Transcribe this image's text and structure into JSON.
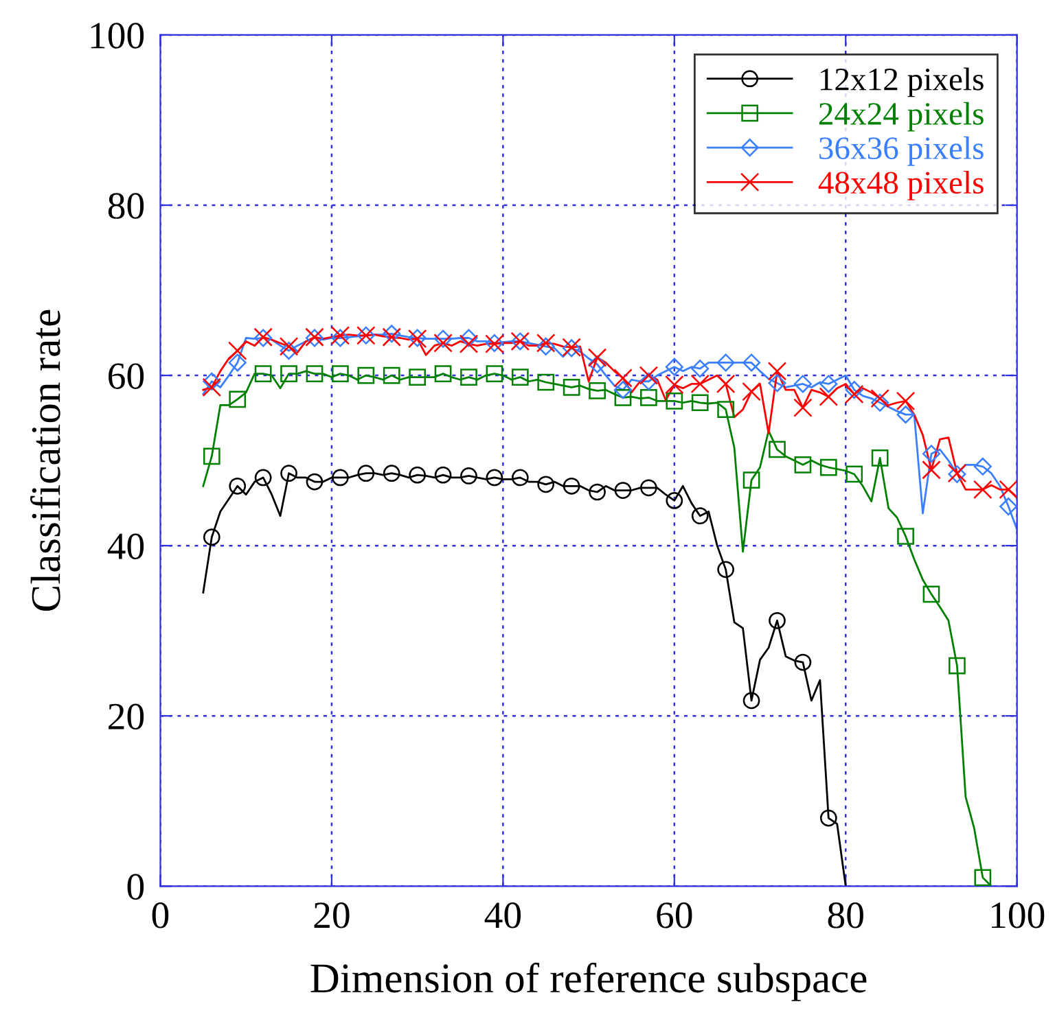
{
  "chart_data": {
    "type": "line",
    "xlabel": "Dimension of reference subspace",
    "ylabel": "Classification rate",
    "xlim": [
      0,
      100
    ],
    "ylim": [
      0,
      100
    ],
    "xticks": [
      0,
      20,
      40,
      60,
      80,
      100
    ],
    "yticks": [
      0,
      20,
      40,
      60,
      80,
      100
    ],
    "grid": true,
    "legend": "top right",
    "line_style": "solid",
    "series": [
      {
        "color": "#000000",
        "x": [
          5,
          6,
          7,
          8,
          9,
          10,
          11,
          12,
          13,
          14,
          15,
          16,
          17,
          18,
          19,
          20,
          21,
          22,
          23,
          24,
          25,
          26,
          27,
          28,
          29,
          30,
          31,
          32,
          33,
          34,
          35,
          36,
          37,
          38,
          39,
          40,
          41,
          42,
          43,
          44,
          45,
          46,
          47,
          48,
          49,
          50,
          51,
          52,
          53,
          54,
          55,
          56,
          57,
          58,
          59,
          60,
          61,
          62,
          63,
          64,
          65,
          66,
          67,
          68,
          69,
          70,
          71,
          72,
          73,
          74,
          75,
          76,
          77,
          78,
          79,
          80
        ],
        "values": [
          34.5,
          41,
          44,
          45.5,
          47,
          46,
          47.5,
          48,
          46,
          43.5,
          48.5,
          48,
          48,
          47.5,
          47.5,
          48,
          48,
          48,
          48.3,
          48.5,
          48.5,
          48.3,
          48.5,
          48.3,
          48,
          48.3,
          48.2,
          48,
          48.3,
          48,
          48,
          48.2,
          48,
          47.8,
          48,
          47.8,
          47.8,
          48,
          47.5,
          47.5,
          47.2,
          47.5,
          47,
          47,
          47,
          46.5,
          46.3,
          47,
          46.5,
          46.5,
          46.5,
          46.8,
          46.8,
          46.8,
          46,
          45.3,
          47,
          45,
          43.5,
          44,
          40,
          37.2,
          31,
          30.3,
          21.8,
          26.6,
          28,
          31.2,
          27,
          26.5,
          26.3,
          21.8,
          24.2,
          8,
          7.3,
          0
        ]
      },
      {
        "type": "scatter",
        "name": "12x12 pixels",
        "color": "#000000",
        "marker": "circle",
        "x": [
          6,
          9,
          12,
          15,
          18,
          21,
          24,
          27,
          30,
          33,
          36,
          39,
          42,
          45,
          48,
          51,
          54,
          57,
          60,
          63,
          66,
          69,
          72,
          75,
          78
        ],
        "values": [
          41,
          47,
          48,
          48.5,
          47.5,
          48,
          48.5,
          48.5,
          48.3,
          48.3,
          48.2,
          48,
          48,
          47.2,
          47,
          46.3,
          46.5,
          46.8,
          45.3,
          43.5,
          37.2,
          21.8,
          31.2,
          26.3,
          8
        ]
      },
      {
        "color": "#008000",
        "x": [
          5,
          6,
          7,
          8,
          9,
          10,
          11,
          12,
          13,
          14,
          15,
          16,
          17,
          18,
          19,
          20,
          21,
          22,
          23,
          24,
          25,
          26,
          27,
          28,
          29,
          30,
          31,
          32,
          33,
          34,
          35,
          36,
          37,
          38,
          39,
          40,
          41,
          42,
          43,
          44,
          45,
          46,
          47,
          48,
          49,
          50,
          51,
          52,
          53,
          54,
          55,
          56,
          57,
          58,
          59,
          60,
          61,
          62,
          63,
          64,
          65,
          66,
          67,
          68,
          69,
          70,
          71,
          72,
          73,
          74,
          75,
          76,
          77,
          78,
          79,
          80,
          81,
          82,
          83,
          84,
          85,
          86,
          87,
          88,
          89,
          90,
          91,
          92,
          93,
          94,
          95,
          96,
          97
        ],
        "values": [
          47,
          50.5,
          56.5,
          56.5,
          57.2,
          58,
          60.2,
          60.2,
          60,
          58.5,
          60.2,
          60.2,
          60.5,
          60.2,
          60.2,
          59.8,
          60.2,
          60,
          59.5,
          60,
          59.8,
          59.5,
          60,
          59.5,
          59.8,
          59.8,
          59.8,
          59.8,
          60.2,
          59.8,
          59.5,
          59.8,
          59.5,
          60,
          60.2,
          60,
          59.5,
          59.8,
          59.3,
          59.5,
          59.2,
          59,
          58.8,
          58.6,
          58.8,
          58.4,
          58.2,
          58.3,
          57.8,
          57.4,
          57.5,
          57.3,
          57.4,
          57,
          57,
          57,
          56.8,
          57,
          56.8,
          56.7,
          56.8,
          56,
          51.5,
          39.3,
          47.7,
          49.2,
          53.5,
          51.3,
          50.5,
          50,
          49.5,
          50,
          49.5,
          49.2,
          49,
          48.8,
          48.4,
          47,
          45.2,
          50.3,
          44.4,
          43.3,
          41.1,
          38.4,
          36,
          34.3,
          32.8,
          31.2,
          25.9,
          10.5,
          6.8,
          1,
          0
        ]
      },
      {
        "type": "scatter",
        "name": "24x24 pixels",
        "color": "#008000",
        "marker": "square",
        "x": [
          6,
          9,
          12,
          15,
          18,
          21,
          24,
          27,
          30,
          33,
          36,
          39,
          42,
          45,
          48,
          51,
          54,
          57,
          60,
          63,
          66,
          69,
          72,
          75,
          78,
          81,
          84,
          87,
          90,
          93,
          96
        ],
        "values": [
          50.5,
          57.2,
          60.2,
          60.2,
          60.2,
          60.2,
          60,
          60,
          59.8,
          60.2,
          59.8,
          60.2,
          59.8,
          59.2,
          58.6,
          58.2,
          57.4,
          57.4,
          57,
          56.8,
          56,
          47.7,
          51.3,
          49.5,
          49.2,
          48.4,
          50.3,
          41.1,
          34.3,
          25.9,
          1
        ]
      },
      {
        "color": "#3a7fff",
        "x": [
          5,
          6,
          7,
          8,
          9,
          10,
          11,
          12,
          13,
          14,
          15,
          16,
          17,
          18,
          19,
          20,
          21,
          22,
          23,
          24,
          25,
          26,
          27,
          28,
          29,
          30,
          31,
          32,
          33,
          34,
          35,
          36,
          37,
          38,
          39,
          40,
          41,
          42,
          43,
          44,
          45,
          46,
          47,
          48,
          49,
          50,
          51,
          52,
          53,
          54,
          55,
          56,
          57,
          58,
          59,
          60,
          61,
          62,
          63,
          64,
          65,
          66,
          67,
          68,
          69,
          70,
          71,
          72,
          73,
          74,
          75,
          76,
          77,
          78,
          79,
          80,
          81,
          82,
          83,
          84,
          85,
          86,
          87,
          88,
          89,
          90,
          91,
          92,
          93,
          94,
          95,
          96,
          97,
          98,
          99,
          100
        ],
        "values": [
          57.8,
          59.3,
          58.6,
          60,
          61.5,
          64.4,
          64.3,
          64.4,
          64.2,
          63.5,
          62.9,
          63.5,
          64,
          64.4,
          64.2,
          64.4,
          64.4,
          64.5,
          64.6,
          64.7,
          64.8,
          64.8,
          64.9,
          64.7,
          64.5,
          64.4,
          64.3,
          64.3,
          64.3,
          64.3,
          64.4,
          64.4,
          64,
          64,
          63.8,
          63.9,
          64,
          64,
          63.8,
          63.6,
          63.4,
          63.2,
          62.2,
          63.2,
          62.8,
          62,
          61.3,
          60,
          58.8,
          58.3,
          59.5,
          59.3,
          59.3,
          60,
          60.5,
          61,
          60.5,
          61,
          60.8,
          61.5,
          61.5,
          61.5,
          61.5,
          61.5,
          61.5,
          60.5,
          59.6,
          59.1,
          58.6,
          58.8,
          59,
          58.6,
          59.2,
          59,
          59.5,
          60,
          58.3,
          57.6,
          57.3,
          56.8,
          56.3,
          55.8,
          55.4,
          55.4,
          43.8,
          50.8,
          51.3,
          50,
          48.4,
          49.5,
          49.5,
          49.3,
          48.5,
          47,
          44.6,
          41.9
        ]
      },
      {
        "type": "scatter",
        "name": "36x36 pixels",
        "color": "#3a7fff",
        "marker": "diamond",
        "x": [
          6,
          9,
          12,
          15,
          18,
          21,
          24,
          27,
          30,
          33,
          36,
          39,
          42,
          45,
          48,
          51,
          54,
          57,
          60,
          63,
          66,
          69,
          72,
          75,
          78,
          81,
          84,
          87,
          90,
          93,
          96,
          99
        ],
        "values": [
          59.3,
          61.5,
          64.4,
          62.9,
          64.4,
          64.4,
          64.7,
          64.9,
          64.4,
          64.3,
          64.4,
          63.8,
          64,
          63.4,
          63.2,
          61.3,
          58.3,
          59.3,
          61,
          60.8,
          61.5,
          61.5,
          59.1,
          59,
          59,
          58.3,
          56.8,
          55.4,
          50.8,
          48.4,
          49.3,
          44.6
        ]
      },
      {
        "color": "#ff0000",
        "x": [
          5,
          6,
          7,
          8,
          9,
          10,
          11,
          12,
          13,
          14,
          15,
          16,
          17,
          18,
          19,
          20,
          21,
          22,
          23,
          24,
          25,
          26,
          27,
          28,
          29,
          30,
          31,
          32,
          33,
          34,
          35,
          36,
          37,
          38,
          39,
          40,
          41,
          42,
          43,
          44,
          45,
          46,
          47,
          48,
          49,
          50,
          51,
          52,
          53,
          54,
          55,
          56,
          57,
          58,
          59,
          60,
          61,
          62,
          63,
          64,
          65,
          66,
          67,
          68,
          69,
          70,
          71,
          72,
          73,
          74,
          75,
          76,
          77,
          78,
          79,
          80,
          81,
          82,
          83,
          84,
          85,
          86,
          87,
          88,
          89,
          90,
          91,
          92,
          93,
          94,
          95,
          96,
          97,
          98,
          99,
          100
        ],
        "values": [
          58.3,
          58.6,
          60.5,
          62,
          62.9,
          64,
          63.5,
          64.5,
          64.2,
          63.8,
          63.4,
          62.7,
          64,
          64.5,
          64.3,
          64.5,
          64.7,
          64.8,
          64.7,
          64.7,
          64.8,
          64.6,
          64.5,
          64.4,
          64.2,
          64.3,
          62.4,
          63.5,
          63.8,
          63.5,
          64,
          63.7,
          63.5,
          63.7,
          63.7,
          63.8,
          63.8,
          64,
          63.5,
          63.5,
          63.8,
          63.7,
          63.4,
          63.3,
          63.4,
          59.3,
          62.1,
          61.5,
          60.5,
          59.7,
          58,
          59.3,
          60,
          59.5,
          57.1,
          58.9,
          58.5,
          59,
          59,
          59.5,
          60,
          59,
          55.1,
          56,
          58.1,
          59,
          53.2,
          60.5,
          58.3,
          58.3,
          56.2,
          58.3,
          58,
          57.5,
          58.5,
          59,
          57.8,
          58.5,
          58,
          57.3,
          56.5,
          56.8,
          57,
          55.4,
          53,
          48.9,
          52.5,
          52.7,
          48.5,
          46.6,
          46.6,
          46.6,
          47.1,
          46.6,
          46.6,
          45.7
        ]
      },
      {
        "type": "scatter",
        "name": "48x48 pixels",
        "color": "#ff0000",
        "marker": "cross",
        "x": [
          6,
          9,
          12,
          15,
          18,
          21,
          24,
          27,
          30,
          33,
          36,
          39,
          42,
          45,
          48,
          51,
          54,
          57,
          60,
          63,
          66,
          69,
          72,
          75,
          78,
          81,
          84,
          87,
          90,
          93,
          96,
          99
        ],
        "values": [
          58.6,
          62.9,
          64.5,
          63.4,
          64.5,
          64.7,
          64.7,
          64.5,
          64.3,
          63.8,
          63.7,
          63.7,
          64,
          63.8,
          63.3,
          62.1,
          59.7,
          60,
          58.9,
          59,
          59,
          58.1,
          60.5,
          56.2,
          57.5,
          57.8,
          57.3,
          57,
          48.9,
          48.5,
          46.6,
          46.6
        ]
      }
    ]
  }
}
